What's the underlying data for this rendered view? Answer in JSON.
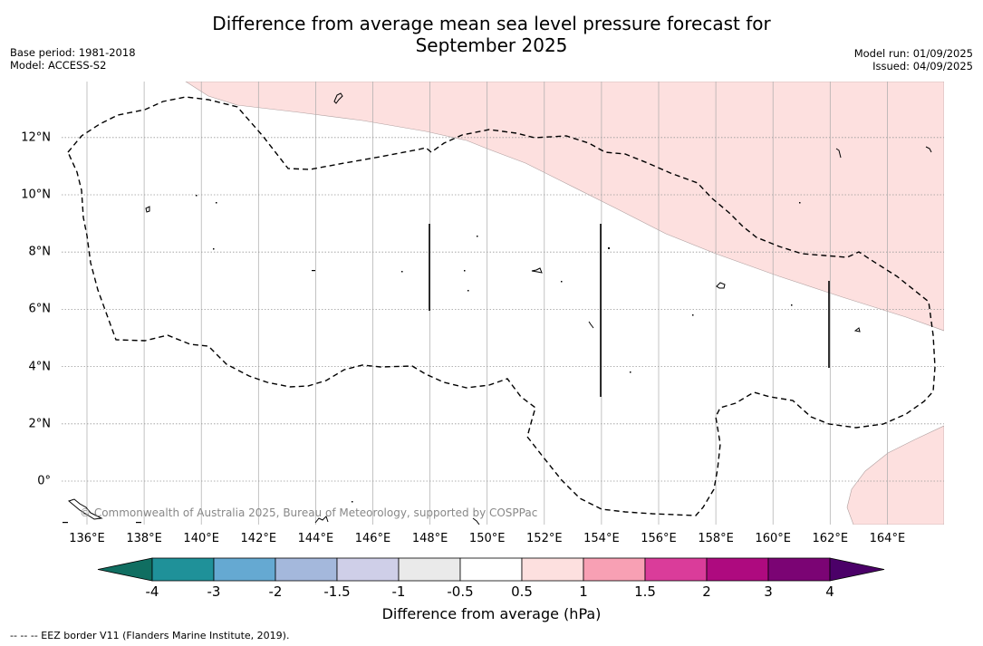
{
  "title_line1": "Difference from average mean sea level pressure forecast for",
  "title_line2": "September 2025",
  "base_period": "Base period: 1981-2018",
  "model": "Model: ACCESS-S2",
  "model_run": "Model run: 01/09/2025",
  "issued": "Issued: 04/09/2025",
  "copyright": "© Commonwealth of Australia 2025, Bureau of Meteorology, supported by COSPPac",
  "footnote": "-- -- -- EEZ border V11 (Flanders Marine Institute, 2019).",
  "x_ticks": [
    "136°E",
    "138°E",
    "140°E",
    "142°E",
    "144°E",
    "146°E",
    "148°E",
    "150°E",
    "152°E",
    "154°E",
    "156°E",
    "158°E",
    "160°E",
    "162°E",
    "164°E"
  ],
  "y_ticks": [
    "12°N",
    "10°N",
    "8°N",
    "6°N",
    "4°N",
    "2°N",
    "0°"
  ],
  "colorbar": {
    "title": "Difference from average (hPa)",
    "labels": [
      "-4",
      "-3",
      "-2",
      "-1.5",
      "-1",
      "-0.5",
      "0.5",
      "1",
      "1.5",
      "2",
      "3",
      "4"
    ],
    "colors": [
      "#1f9199",
      "#65a9d2",
      "#a4b8dc",
      "#cfcfe8",
      "#eaeaea",
      "#ffffff",
      "#fde0df",
      "#f8a0b4",
      "#da3c9a",
      "#ae0a7f",
      "#7b0474"
    ],
    "under_color": "#106e61",
    "over_color": "#4b0068"
  },
  "chart_data": {
    "type": "map",
    "lon_range": [
      135.0,
      166.0
    ],
    "lat_range": [
      -1.5,
      14.0
    ],
    "shaded_regions": [
      {
        "category": "0.5 to 1 hPa",
        "color": "#fde0df",
        "location": "north-east"
      },
      {
        "category": "0.5 to 1 hPa",
        "color": "#fde0df",
        "location": "south-east corner"
      }
    ]
  }
}
